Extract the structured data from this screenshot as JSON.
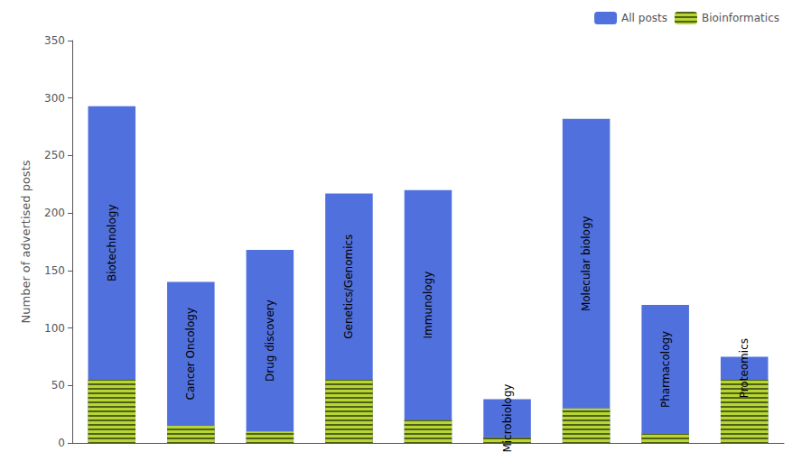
{
  "chart_data": {
    "type": "bar",
    "categories": [
      "Biotechnology",
      "Cancer Oncology",
      "Drug discovery",
      "Genetics/Genomics",
      "Immunology",
      "Microbiology",
      "Molecular biology",
      "Pharmacology",
      "Proteomics"
    ],
    "series": [
      {
        "name": "All posts",
        "values": [
          293,
          140,
          168,
          217,
          220,
          38,
          282,
          120,
          75
        ]
      },
      {
        "name": "Bioinformatics",
        "values": [
          55,
          15,
          10,
          55,
          20,
          5,
          30,
          8,
          55
        ]
      }
    ],
    "ylabel": "Number of advertised posts",
    "ylim": [
      0,
      350
    ],
    "yticks": [
      0,
      50,
      100,
      150,
      200,
      250,
      300,
      350
    ],
    "grid": false,
    "legend": "upper right",
    "tick_labels": "y"
  }
}
